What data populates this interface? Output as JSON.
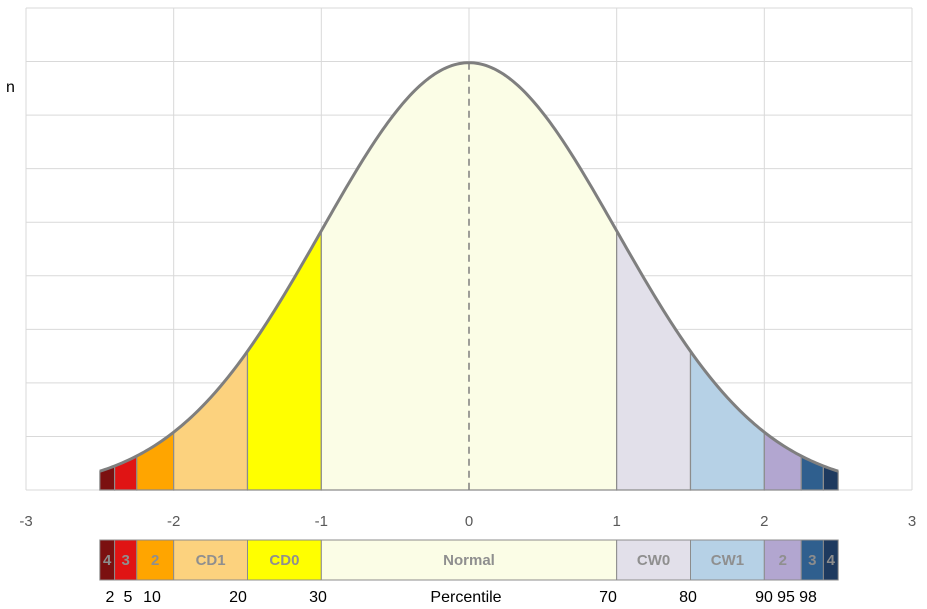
{
  "chart_data": {
    "type": "normal-curve",
    "side_note": "n",
    "curve": {
      "mean": 0,
      "sd": 1,
      "range": [
        -2.5,
        2.5
      ],
      "color": "#7f7f7f"
    },
    "xlim": [
      -3,
      3
    ],
    "xticks": [
      -3,
      -2,
      -1,
      0,
      1,
      2,
      3
    ],
    "ylim": [
      0,
      0.45
    ],
    "yticks": [
      0,
      0.05,
      0.1,
      0.15,
      0.2,
      0.25,
      0.3,
      0.35,
      0.4,
      0.45
    ],
    "grid": true,
    "regions": [
      {
        "name": "4",
        "from": -2.5,
        "to": -2.4,
        "color": "#7b1010"
      },
      {
        "name": "3",
        "from": -2.4,
        "to": -2.25,
        "color": "#e01414"
      },
      {
        "name": "2",
        "from": -2.25,
        "to": -2,
        "color": "#ffa500"
      },
      {
        "name": "CD1",
        "from": -2,
        "to": -1.5,
        "color": "#fcd27e"
      },
      {
        "name": "CD0",
        "from": -1.5,
        "to": -1,
        "color": "#ffff00"
      },
      {
        "name": "Normal",
        "from": -1,
        "to": 1,
        "color": "#fbfde6"
      },
      {
        "name": "CW0",
        "from": 1,
        "to": 1.5,
        "color": "#e2e0ea"
      },
      {
        "name": "CW1",
        "from": 1.5,
        "to": 2,
        "color": "#b6d1e6"
      },
      {
        "name": "2",
        "from": 2,
        "to": 2.25,
        "color": "#b2a6d0"
      },
      {
        "name": "3",
        "from": 2.25,
        "to": 2.4,
        "color": "#2f5f8e"
      },
      {
        "name": "4",
        "from": 2.4,
        "to": 2.5,
        "color": "#1e3a5f"
      }
    ],
    "percentiles": [
      2,
      5,
      10,
      20,
      30,
      70,
      80,
      90,
      95,
      98
    ],
    "percentile_title": "Percentile"
  }
}
